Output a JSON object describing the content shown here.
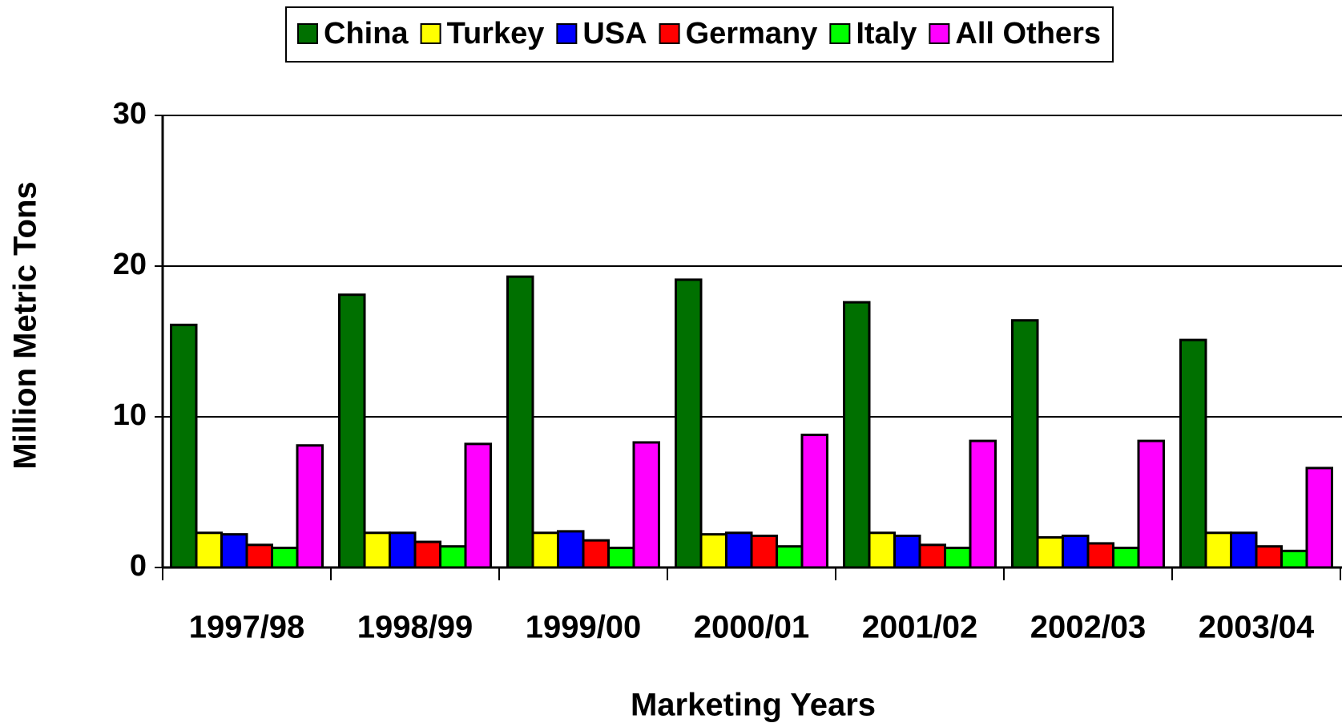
{
  "chart_data": {
    "type": "bar",
    "x_label": "Marketing Years",
    "y_label": "Million Metric Tons",
    "categories": [
      "1997/98",
      "1998/99",
      "1999/00",
      "2000/01",
      "2001/02",
      "2002/03",
      "2003/04"
    ],
    "series": [
      {
        "name": "China",
        "color": "#007000",
        "values": [
          16.1,
          18.1,
          19.3,
          19.1,
          17.6,
          16.4,
          15.1
        ]
      },
      {
        "name": "Turkey",
        "color": "#ffff00",
        "values": [
          2.3,
          2.3,
          2.3,
          2.2,
          2.3,
          2.0,
          2.3
        ]
      },
      {
        "name": "USA",
        "color": "#0000ff",
        "values": [
          2.2,
          2.3,
          2.4,
          2.3,
          2.1,
          2.1,
          2.3
        ]
      },
      {
        "name": "Germany",
        "color": "#ff0000",
        "values": [
          1.5,
          1.7,
          1.8,
          2.1,
          1.5,
          1.6,
          1.4
        ]
      },
      {
        "name": "Italy",
        "color": "#00ff00",
        "values": [
          1.3,
          1.4,
          1.3,
          1.4,
          1.3,
          1.3,
          1.1
        ]
      },
      {
        "name": "All Others",
        "color": "#ff00ff",
        "values": [
          8.1,
          8.2,
          8.3,
          8.8,
          8.4,
          8.4,
          6.6
        ]
      }
    ],
    "ylim": [
      0,
      30
    ],
    "yticks": [
      0,
      10,
      20,
      30
    ],
    "grid": true,
    "legend": "top"
  }
}
